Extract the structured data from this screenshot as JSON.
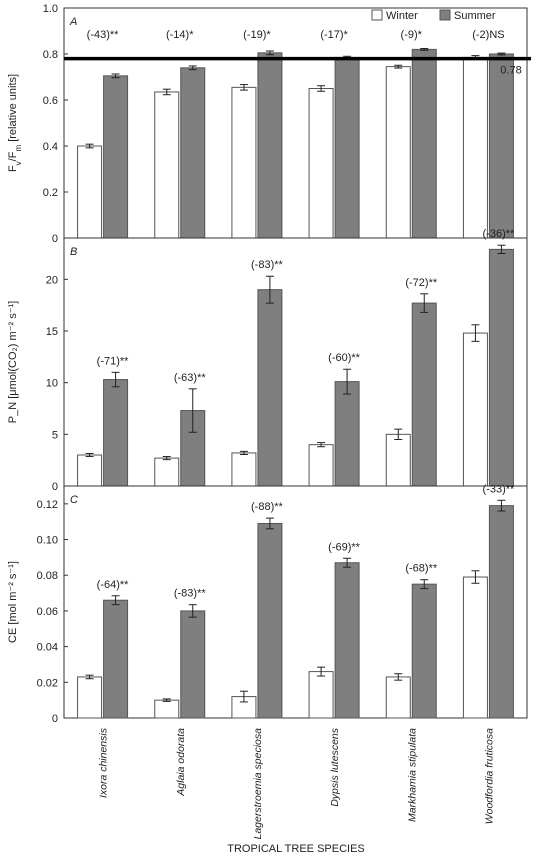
{
  "chart_data": [
    {
      "type": "bar",
      "panel_label": "A",
      "ylabel": "Fv/Fm [relative units]",
      "ylim": [
        0,
        1.0
      ],
      "yticks": [
        "0",
        "0.2",
        "0.4",
        "0.6",
        "0.8",
        "1.0"
      ],
      "categories": [
        "Ixora chinensis",
        "Aglaia odorata",
        "Lagerstroemia speciosa",
        "Dypsis lutescens",
        "Markhamia stipulata",
        "Woodfordia fruticosa"
      ],
      "legend_position": "top-right",
      "legend": [
        "Winter",
        "Summer"
      ],
      "series": [
        {
          "name": "Winter",
          "color": "#ffffff",
          "values": [
            0.4,
            0.635,
            0.655,
            0.65,
            0.745,
            0.785
          ],
          "errors": [
            0.008,
            0.012,
            0.012,
            0.012,
            0.006,
            0.008
          ]
        },
        {
          "name": "Summer",
          "color": "#7f7f7f",
          "values": [
            0.705,
            0.74,
            0.805,
            0.785,
            0.82,
            0.8
          ],
          "errors": [
            0.008,
            0.008,
            0.008,
            0.005,
            0.004,
            0.004
          ]
        }
      ],
      "annotations": [
        "(-43)**",
        "(-14)*",
        "(-19)*",
        "(-17)*",
        "(-9)*",
        "(-2)NS"
      ],
      "reference_line": {
        "value": 0.78,
        "label": "0.78"
      }
    },
    {
      "type": "bar",
      "panel_label": "B",
      "ylabel": "P_N [μmol(CO₂) m⁻² s⁻¹]",
      "ylim": [
        0,
        24
      ],
      "yticks": [
        "0",
        "5",
        "10",
        "15",
        "20"
      ],
      "categories": [
        "Ixora chinensis",
        "Aglaia odorata",
        "Lagerstroemia speciosa",
        "Dypsis lutescens",
        "Markhamia stipulata",
        "Woodfordia fruticosa"
      ],
      "series": [
        {
          "name": "Winter",
          "color": "#ffffff",
          "values": [
            3.0,
            2.7,
            3.2,
            4.0,
            5.0,
            14.8
          ],
          "errors": [
            0.15,
            0.15,
            0.15,
            0.2,
            0.5,
            0.8
          ]
        },
        {
          "name": "Summer",
          "color": "#7f7f7f",
          "values": [
            10.3,
            7.3,
            19.0,
            10.1,
            17.7,
            22.9
          ],
          "errors": [
            0.7,
            2.1,
            1.3,
            1.2,
            0.9,
            0.4
          ]
        }
      ],
      "annotations": [
        "(-71)**",
        "(-63)**",
        "(-83)**",
        "(-60)**",
        "(-72)**",
        "(-36)**"
      ]
    },
    {
      "type": "bar",
      "panel_label": "C",
      "ylabel": "CE [mol m⁻² s⁻¹]",
      "ylim": [
        0,
        0.13
      ],
      "yticks": [
        "0",
        "0.02",
        "0.04",
        "0.06",
        "0.08",
        "0.10",
        "0.12"
      ],
      "categories": [
        "Ixora chinensis",
        "Aglaia odorata",
        "Lagerstroemia speciosa",
        "Dypsis lutescens",
        "Markhamia stipulata",
        "Woodfordia fruticosa"
      ],
      "series": [
        {
          "name": "Winter",
          "color": "#ffffff",
          "values": [
            0.023,
            0.01,
            0.012,
            0.026,
            0.023,
            0.079
          ],
          "errors": [
            0.001,
            0.0007,
            0.003,
            0.0025,
            0.0018,
            0.0035
          ]
        },
        {
          "name": "Summer",
          "color": "#7f7f7f",
          "values": [
            0.066,
            0.06,
            0.109,
            0.087,
            0.075,
            0.119
          ],
          "errors": [
            0.0025,
            0.0035,
            0.003,
            0.0025,
            0.0025,
            0.003
          ]
        }
      ],
      "annotations": [
        "(-64)**",
        "(-83)**",
        "(-88)**",
        "(-69)**",
        "(-68)**",
        "(-33)**"
      ]
    }
  ],
  "xlabel": "TROPICAL TREE SPECIES"
}
